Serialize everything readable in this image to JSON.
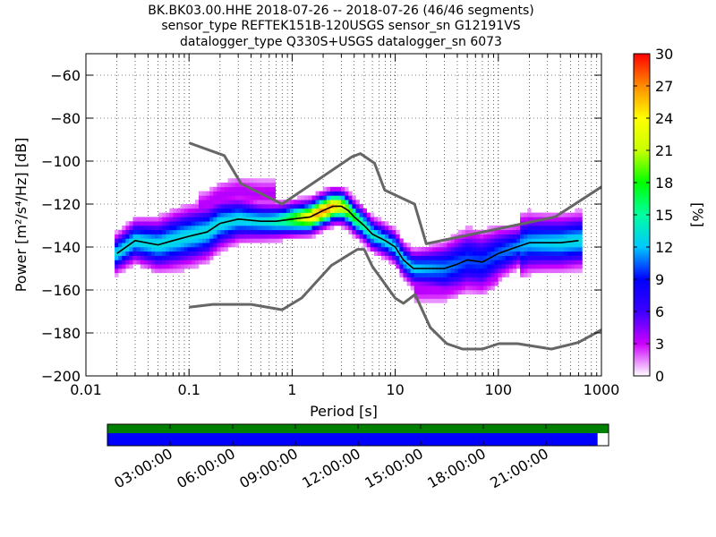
{
  "chart_data": {
    "type": "heatmap",
    "title_lines": [
      "BK.BK03.00.HHE   2018-07-26 -- 2018-07-26  (46/46 segments)",
      "sensor_type REFTEK151B-120USGS sensor_sn G12191VS",
      "datalogger_type Q330S+USGS datalogger_sn 6073"
    ],
    "xlabel": "Period [s]",
    "ylabel": "Power [m²/s⁴/Hz] [dB]",
    "x_scale": "log",
    "xlim": [
      0.01,
      1000
    ],
    "ylim": [
      -200,
      -50
    ],
    "x_ticks": [
      0.01,
      0.1,
      1,
      10,
      100,
      1000
    ],
    "x_tick_labels": [
      "0.01",
      "0.1",
      "1",
      "10",
      "100",
      "1000"
    ],
    "y_ticks": [
      -200,
      -180,
      -160,
      -140,
      -120,
      -100,
      -80,
      -60
    ],
    "y_tick_labels": [
      "−200",
      "−180",
      "−160",
      "−140",
      "−120",
      "−100",
      "−80",
      "−60"
    ],
    "grid": true,
    "colorbar": {
      "label": "[%]",
      "range": [
        0,
        30
      ],
      "ticks": [
        0,
        3,
        6,
        9,
        12,
        15,
        18,
        21,
        24,
        27,
        30
      ],
      "colormap_stops": [
        "#ffffff",
        "#cc00ff",
        "#3c00ff",
        "#0000ff",
        "#00c8ff",
        "#00ffa0",
        "#00ff00",
        "#c8ff00",
        "#ffff00",
        "#ff8c00",
        "#ff0000"
      ]
    },
    "noise_models": [
      {
        "name": "high",
        "x": [
          0.1,
          0.22,
          0.32,
          0.8,
          3.8,
          4.6,
          6.3,
          7.9,
          15.4,
          20,
          354.8,
          1000
        ],
        "y": [
          -91.5,
          -97.4,
          -110.5,
          -120,
          -98,
          -96.5,
          -101,
          -113.5,
          -120,
          -138.5,
          -126,
          -112
        ]
      },
      {
        "name": "low",
        "x": [
          0.1,
          0.17,
          0.4,
          0.8,
          1.24,
          2.4,
          4.3,
          5,
          6,
          10,
          12,
          15.6,
          21.9,
          31.6,
          45,
          70,
          101,
          154,
          328,
          600,
          1000
        ],
        "y": [
          -168,
          -166.7,
          -166.7,
          -169.2,
          -163.7,
          -148.6,
          -141.1,
          -141.1,
          -149,
          -163.8,
          -166.2,
          -162.1,
          -177.5,
          -185,
          -187.5,
          -187.5,
          -185,
          -185,
          -187.5,
          -184.4,
          -178.6
        ]
      }
    ],
    "mode_line": {
      "x": [
        0.02,
        0.03,
        0.05,
        0.07,
        0.1,
        0.15,
        0.2,
        0.3,
        0.5,
        0.7,
        1,
        1.5,
        2,
        2.5,
        3,
        3.5,
        4,
        5,
        6,
        8,
        10,
        12,
        15,
        20,
        30,
        40,
        50,
        70,
        100,
        150,
        200,
        300,
        400,
        600
      ],
      "y": [
        -143,
        -137,
        -139,
        -137,
        -135,
        -133,
        -129,
        -127,
        -128,
        -128,
        -127,
        -126,
        -123,
        -121,
        -121,
        -123,
        -126,
        -130,
        -134,
        -137,
        -140,
        -146,
        -150,
        -150,
        -150,
        -148,
        -146,
        -147,
        -143,
        -140,
        -138,
        -138,
        -138,
        -137
      ]
    }
  },
  "timeline": {
    "tick_labels": [
      "03:00:00",
      "06:00:00",
      "09:00:00",
      "12:00:00",
      "15:00:00",
      "18:00:00",
      "21:00:00"
    ],
    "coverage_fraction": 0.978,
    "data_color": "#0000ff",
    "gap_color": "#008000"
  }
}
